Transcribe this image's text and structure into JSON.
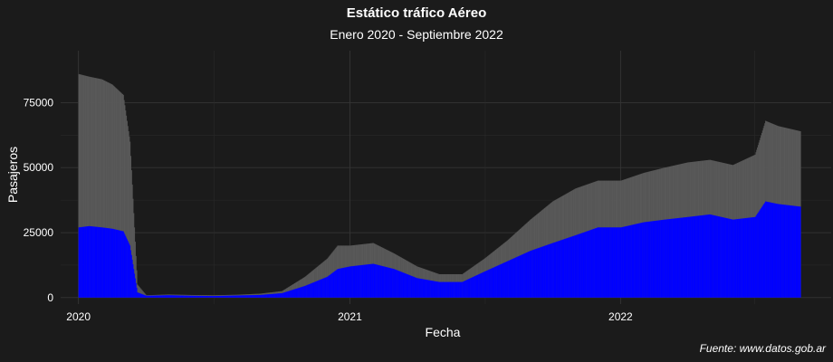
{
  "chart_data": {
    "type": "bar",
    "title": "Estático tráfico Aéreo",
    "subtitle": "Enero 2020 - Septiembre 2022",
    "caption": "Fuente: www.datos.gob.ar",
    "xlabel": "Fecha",
    "ylabel": "Pasajeros",
    "xlim": [
      "2019-12-08",
      "2022-10-12"
    ],
    "ylim": [
      -2500,
      95000
    ],
    "x_ticks": [
      {
        "date": "2020-01-01",
        "label": "2020"
      },
      {
        "date": "2021-01-01",
        "label": "2021"
      },
      {
        "date": "2022-01-01",
        "label": "2022"
      }
    ],
    "y_ticks": [
      {
        "value": 0,
        "label": "0"
      },
      {
        "value": 25000,
        "label": "25000"
      },
      {
        "value": 50000,
        "label": "50000"
      },
      {
        "value": 75000,
        "label": "75000"
      }
    ],
    "grid": true,
    "legend": "none",
    "stacked": false,
    "series": [
      {
        "color": "#595959",
        "points": [
          [
            "2020-01-01",
            86000
          ],
          [
            "2020-01-15",
            85000
          ],
          [
            "2020-02-01",
            84000
          ],
          [
            "2020-02-15",
            82000
          ],
          [
            "2020-03-01",
            78000
          ],
          [
            "2020-03-10",
            60000
          ],
          [
            "2020-03-20",
            5000
          ],
          [
            "2020-04-01",
            900
          ],
          [
            "2020-05-01",
            1200
          ],
          [
            "2020-06-01",
            1000
          ],
          [
            "2020-07-01",
            900
          ],
          [
            "2020-08-01",
            1100
          ],
          [
            "2020-09-01",
            1500
          ],
          [
            "2020-10-01",
            2500
          ],
          [
            "2020-11-01",
            8000
          ],
          [
            "2020-12-01",
            15000
          ],
          [
            "2020-12-15",
            20000
          ],
          [
            "2021-01-01",
            20000
          ],
          [
            "2021-02-01",
            21000
          ],
          [
            "2021-03-01",
            17000
          ],
          [
            "2021-04-01",
            12000
          ],
          [
            "2021-05-01",
            9000
          ],
          [
            "2021-06-01",
            9000
          ],
          [
            "2021-07-01",
            15000
          ],
          [
            "2021-08-01",
            22000
          ],
          [
            "2021-09-01",
            30000
          ],
          [
            "2021-10-01",
            37000
          ],
          [
            "2021-11-01",
            42000
          ],
          [
            "2021-12-01",
            45000
          ],
          [
            "2022-01-01",
            45000
          ],
          [
            "2022-02-01",
            48000
          ],
          [
            "2022-03-01",
            50000
          ],
          [
            "2022-04-01",
            52000
          ],
          [
            "2022-05-01",
            53000
          ],
          [
            "2022-06-01",
            51000
          ],
          [
            "2022-07-01",
            55000
          ],
          [
            "2022-07-15",
            68000
          ],
          [
            "2022-08-01",
            66000
          ],
          [
            "2022-08-31",
            64000
          ]
        ]
      },
      {
        "color": "#0000ff",
        "points": [
          [
            "2020-01-01",
            27000
          ],
          [
            "2020-01-15",
            27500
          ],
          [
            "2020-02-01",
            27000
          ],
          [
            "2020-02-15",
            26500
          ],
          [
            "2020-03-01",
            25500
          ],
          [
            "2020-03-10",
            20000
          ],
          [
            "2020-03-20",
            2000
          ],
          [
            "2020-04-01",
            700
          ],
          [
            "2020-05-01",
            900
          ],
          [
            "2020-06-01",
            700
          ],
          [
            "2020-07-01",
            600
          ],
          [
            "2020-08-01",
            800
          ],
          [
            "2020-09-01",
            1000
          ],
          [
            "2020-10-01",
            1700
          ],
          [
            "2020-11-01",
            4500
          ],
          [
            "2020-12-01",
            8000
          ],
          [
            "2020-12-15",
            11000
          ],
          [
            "2021-01-01",
            12000
          ],
          [
            "2021-02-01",
            13000
          ],
          [
            "2021-03-01",
            11000
          ],
          [
            "2021-04-01",
            7500
          ],
          [
            "2021-05-01",
            6000
          ],
          [
            "2021-06-01",
            6000
          ],
          [
            "2021-07-01",
            10000
          ],
          [
            "2021-08-01",
            14000
          ],
          [
            "2021-09-01",
            18000
          ],
          [
            "2021-10-01",
            21000
          ],
          [
            "2021-11-01",
            24000
          ],
          [
            "2021-12-01",
            27000
          ],
          [
            "2022-01-01",
            27000
          ],
          [
            "2022-02-01",
            29000
          ],
          [
            "2022-03-01",
            30000
          ],
          [
            "2022-04-01",
            31000
          ],
          [
            "2022-05-01",
            32000
          ],
          [
            "2022-06-01",
            30000
          ],
          [
            "2022-07-01",
            31000
          ],
          [
            "2022-07-15",
            37000
          ],
          [
            "2022-08-01",
            36000
          ],
          [
            "2022-08-31",
            35000
          ]
        ]
      }
    ]
  }
}
